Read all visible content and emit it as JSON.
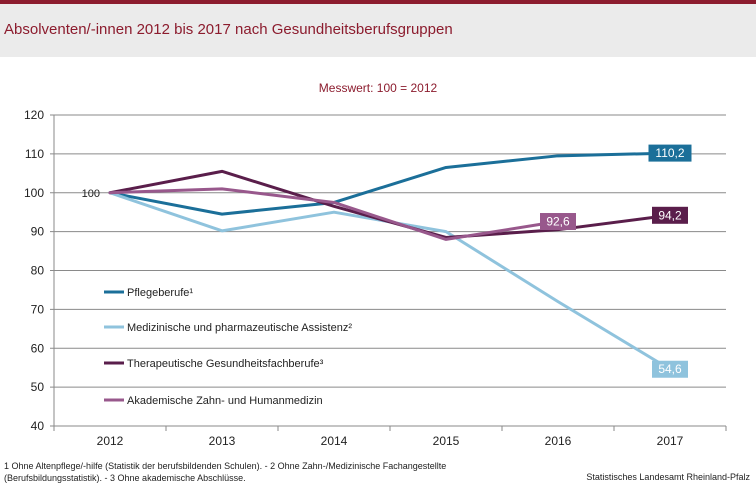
{
  "header": {
    "title": "Absolventen/-innen 2012 bis 2017 nach Gesundheitsberufsgruppen"
  },
  "chart_data": {
    "type": "line",
    "title": "Absolventen/-innen 2012 bis 2017 nach Gesundheitsberufsgruppen",
    "subtitle": "Messwert: 100 = 2012",
    "xlabel": "",
    "ylabel": "",
    "categories": [
      "2012",
      "2013",
      "2014",
      "2015",
      "2016",
      "2017"
    ],
    "ylim": [
      40,
      120
    ],
    "yticks": [
      "40",
      "50",
      "60",
      "70",
      "80",
      "90",
      "100",
      "110",
      "120"
    ],
    "grid": true,
    "legend_position": "left",
    "series": [
      {
        "name": "Pflegeberufe¹",
        "color": "#1b6f99",
        "values": [
          100,
          94.5,
          97.5,
          106.5,
          109.5,
          110.2
        ]
      },
      {
        "name": "Medizinische und pharmazeutische Assistenz²",
        "color": "#8fc3dd",
        "values": [
          100,
          90.2,
          95,
          90,
          72,
          54.6
        ]
      },
      {
        "name": "Therapeutische Gesundheitsfachberufe³",
        "color": "#5a1e4b",
        "values": [
          100,
          105.5,
          96.5,
          88.5,
          90.5,
          94.2
        ]
      },
      {
        "name": "Akademische Zahn- und Humanmedizin",
        "color": "#98588c",
        "values": [
          100,
          101,
          97.5,
          88,
          92.6,
          null
        ]
      }
    ],
    "annotations": [
      {
        "text": "100",
        "series": "start",
        "category": "2012"
      },
      {
        "text": "110,2",
        "series": 0,
        "category": "2017"
      },
      {
        "text": "54,6",
        "series": 1,
        "category": "2017"
      },
      {
        "text": "94,2",
        "series": 2,
        "category": "2017"
      },
      {
        "text": "92,6",
        "series": 3,
        "category": "2016"
      }
    ]
  },
  "footer": {
    "footnote_line1": "1 Ohne Altenpflege/-hilfe (Statistik der berufsbildenden Schulen). - 2 Ohne Zahn-/Medizinische Fachangestellte",
    "footnote_line2": "(Berufsbildungsstatistik). - 3 Ohne akademische Abschlüsse.",
    "source": "Statistisches Landesamt Rheinland-Pfalz"
  }
}
